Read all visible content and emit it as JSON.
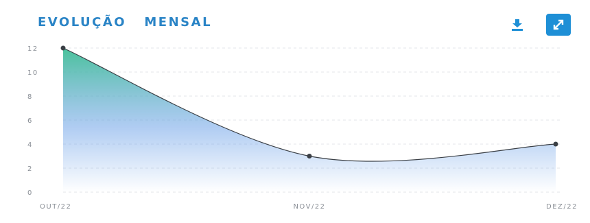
{
  "header": {
    "title": "EVOLUÇÃO   MENSAL",
    "download_icon": "download-icon",
    "expand_icon": "expand-icon",
    "accent_color": "#1e8fd6"
  },
  "chart_data": {
    "type": "area",
    "title": "EVOLUÇÃO   MENSAL",
    "categories": [
      "OUT/22",
      "NOV/22",
      "DEZ/22"
    ],
    "values": [
      12,
      3,
      4
    ],
    "ylim": [
      0,
      12
    ],
    "yticks": [
      "0",
      "2",
      "4",
      "6",
      "8",
      "10",
      "12"
    ],
    "xlabel": "",
    "ylabel": "",
    "grid": true,
    "smooth": true,
    "colors": {
      "area_top": "#3fbf95",
      "area_bottom": "#6fa3e8",
      "line": "#3a3f45",
      "point": "#3a3f45"
    }
  }
}
